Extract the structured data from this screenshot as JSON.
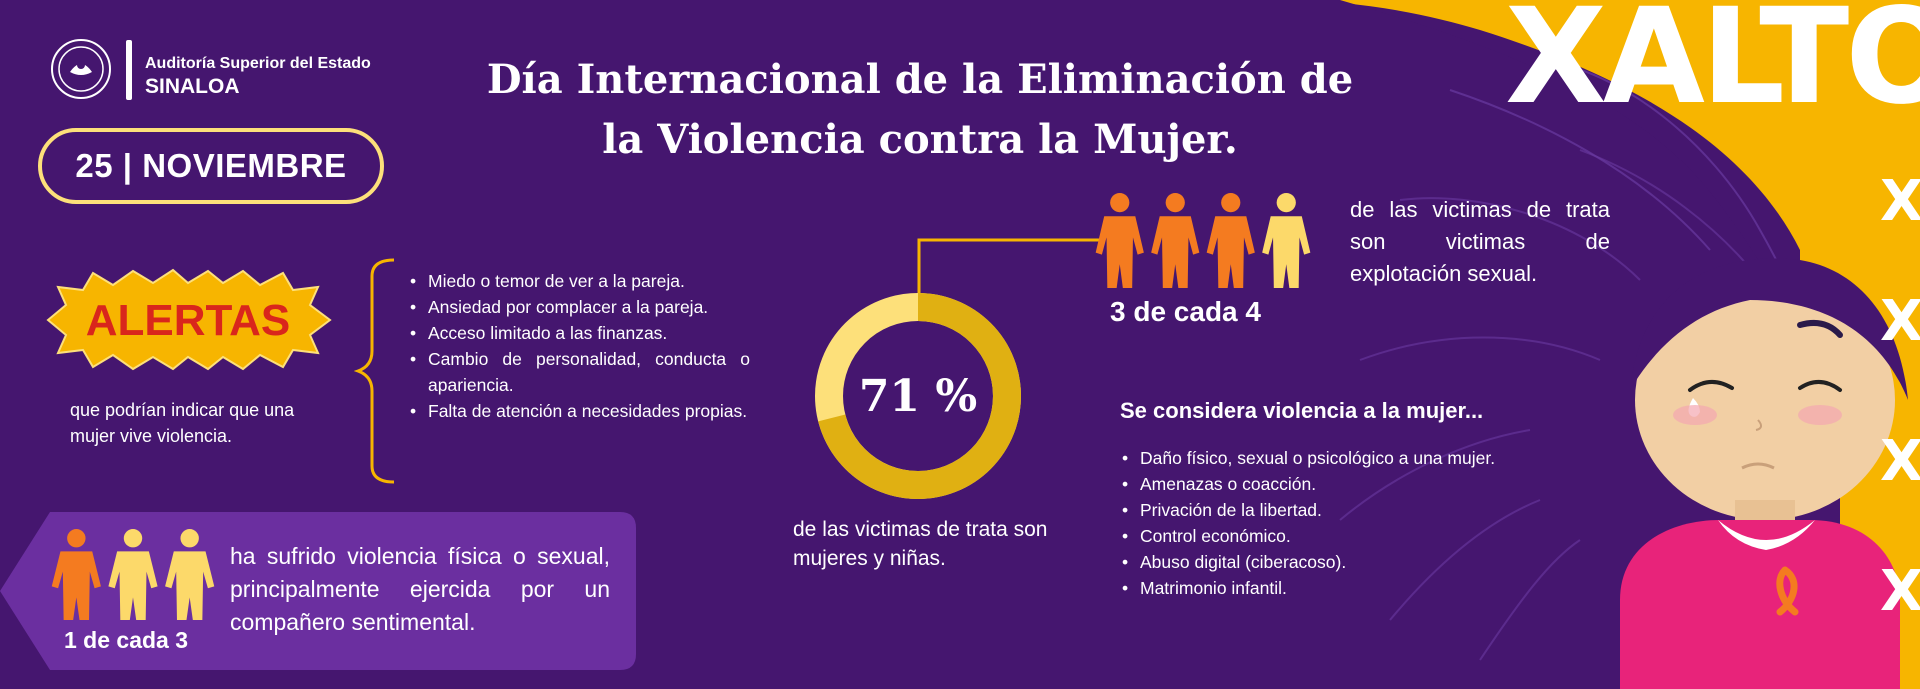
{
  "header": {
    "org_line1": "Auditoría Superior del Estado",
    "org_line2": "SINALOA",
    "date": "25 | NOVIEMBRE",
    "title": "Día Internacional de la Eliminación de la Violencia contra la Mujer."
  },
  "alertas": {
    "badge": "ALERTAS",
    "subtitle": "que podrían indicar que una mujer vive violencia.",
    "items": [
      "Miedo o temor de ver a la pareja.",
      "Ansiedad por complacer a la pareja.",
      "Acceso limitado a las finanzas.",
      "Cambio de personalidad, conducta o apariencia.",
      "Falta de atención a necesidades propias."
    ]
  },
  "stat_1of3": {
    "label": "1 de cada 3",
    "text": "ha sufrido violencia física o sexual, principalmente ejercida por un compañero sentimental.",
    "highlighted": 1,
    "total": 3
  },
  "stat_71": {
    "value": "71 %",
    "percent": 71,
    "text": "de las victimas de trata son mujeres y niñas."
  },
  "stat_3of4": {
    "label": "3 de cada 4",
    "text": "de las victimas de trata son victimas de explotación sexual.",
    "highlighted": 3,
    "total": 4
  },
  "violencia": {
    "title": "Se considera violencia a la mujer...",
    "items": [
      "Daño físico, sexual o psicológico a una mujer.",
      "Amenazas o coacción.",
      "Privación de la libertad.",
      "Control económico.",
      "Abuso digital (ciberacoso).",
      "Matrimonio infantil."
    ]
  },
  "art": {
    "slogan": "XALTO"
  },
  "colors": {
    "background": "#45166f",
    "accent_yellow": "#f7b500",
    "pill_border": "#fde07a",
    "alert_red": "#d9261c",
    "person_orange": "#f47b20",
    "person_yellow": "#fcd96a",
    "shirt_pink": "#e8237a"
  }
}
